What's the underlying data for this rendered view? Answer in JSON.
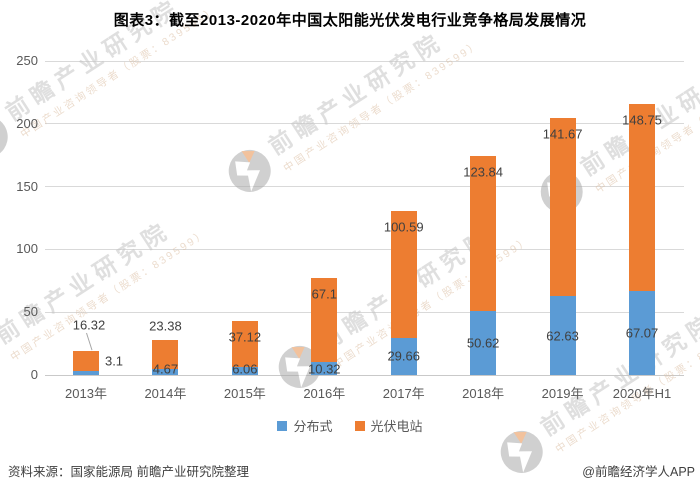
{
  "title": "图表3：截至2013-2020年中国太阳能光伏发电行业竞争格局发展情况",
  "watermark": {
    "brand": "前瞻产业研究院",
    "tagline": "中国产业咨询领导者（股票：839599）"
  },
  "footer": {
    "source": "资料来源：国家能源局 前瞻产业研究院整理",
    "credit": "@前瞻经济学人APP"
  },
  "colors": {
    "distributed_blue": "#5B9BD5",
    "station_orange": "#ED7D31",
    "grid_line": "#D9D9D9",
    "axis_text": "#595959",
    "data_label": "#404040"
  },
  "chart_data": {
    "type": "bar",
    "stacked": true,
    "title": "图表3：截至2013-2020年中国太阳能光伏发电行业竞争格局发展情况",
    "categories": [
      "2013年",
      "2014年",
      "2015年",
      "2016年",
      "2017年",
      "2018年",
      "2019年",
      "2020年H1"
    ],
    "series": [
      {
        "name": "分布式",
        "color": "#5B9BD5",
        "values": [
          3.1,
          4.67,
          6.06,
          10.32,
          29.66,
          50.62,
          62.63,
          67.07
        ]
      },
      {
        "name": "光伏电站",
        "color": "#ED7D31",
        "values": [
          16.32,
          23.38,
          37.12,
          67.1,
          100.59,
          123.84,
          141.67,
          148.75
        ]
      }
    ],
    "xlabel": "",
    "ylabel": "",
    "ylim": [
      0,
      250
    ],
    "yticks": [
      0,
      50,
      100,
      150,
      200,
      250
    ],
    "grid": true,
    "legend_position": "bottom",
    "label_placement": {
      "分布式": [
        "right",
        "baseline",
        "baseline",
        "baseline",
        "center",
        "center",
        "center",
        "center"
      ],
      "光伏电站": [
        "leader",
        "above",
        "inside-top",
        "inside-top",
        "inside-top",
        "inside-top",
        "inside-top",
        "inside-top"
      ]
    }
  }
}
